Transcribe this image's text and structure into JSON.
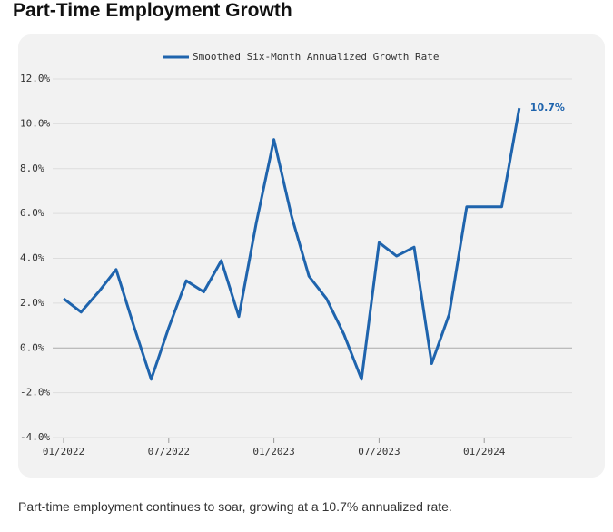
{
  "title": "Part-Time Employment Growth",
  "caption": "Part-time employment continues to soar, growing at a 10.7% annualized rate.",
  "chart_data": {
    "type": "line",
    "categories": [
      "01/2022",
      null,
      null,
      null,
      null,
      null,
      "07/2022",
      null,
      null,
      null,
      null,
      null,
      "01/2023",
      null,
      null,
      null,
      null,
      null,
      "07/2023",
      null,
      null,
      null,
      null,
      null,
      "01/2024",
      null,
      null
    ],
    "series": [
      {
        "name": "Smoothed Six-Month Annualized Growth Rate",
        "color": "#1f64ad",
        "values": [
          2.2,
          1.6,
          2.5,
          3.5,
          1.0,
          -1.4,
          0.9,
          3.0,
          2.5,
          3.9,
          1.4,
          5.6,
          9.3,
          5.9,
          3.2,
          2.2,
          0.6,
          -1.4,
          4.7,
          4.1,
          4.5,
          -0.7,
          1.5,
          6.3,
          6.3,
          6.3,
          10.7
        ],
        "value_labels": [
          null,
          null,
          null,
          null,
          null,
          null,
          null,
          null,
          null,
          null,
          null,
          null,
          null,
          null,
          null,
          null,
          null,
          null,
          null,
          null,
          null,
          null,
          null,
          null,
          null,
          null,
          "10.7%"
        ]
      }
    ],
    "ylim": [
      -4,
      12
    ],
    "yticks": [
      {
        "value": -4,
        "label": "-4.0%"
      },
      {
        "value": -2,
        "label": "-2.0%"
      },
      {
        "value": 0,
        "label": "0.0%"
      },
      {
        "value": 2,
        "label": "2.0%"
      },
      {
        "value": 4,
        "label": "4.0%"
      },
      {
        "value": 6,
        "label": "6.0%"
      },
      {
        "value": 8,
        "label": "8.0%"
      },
      {
        "value": 10,
        "label": "10.0%"
      },
      {
        "value": 12,
        "label": "12.0%"
      }
    ],
    "grid": true,
    "legend": "top"
  }
}
